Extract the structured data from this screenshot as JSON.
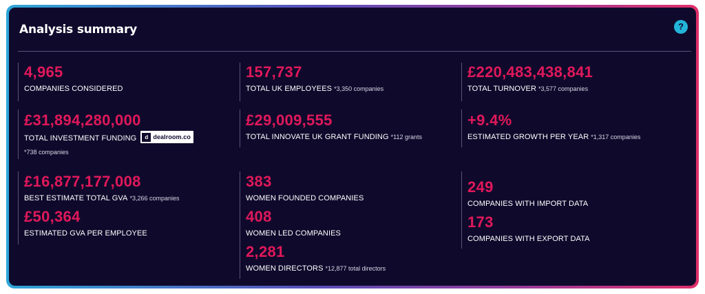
{
  "panel": {
    "title": "Analysis summary",
    "help_label": "?"
  },
  "stats": {
    "companies_considered": {
      "value": "4,965",
      "label": "COMPANIES CONSIDERED"
    },
    "uk_employees": {
      "value": "157,737",
      "label": "TOTAL UK EMPLOYEES",
      "note": "*3,350 companies"
    },
    "turnover": {
      "value": "£220,483,438,841",
      "label": "TOTAL TURNOVER",
      "note": "*3,577 companies"
    },
    "investment_funding": {
      "value": "£31,894,280,000",
      "label": "TOTAL INVESTMENT FUNDING",
      "note": "*738 companies",
      "logo_text": "dealroom.co",
      "logo_mark": "d"
    },
    "innovate_funding": {
      "value": "£29,009,555",
      "label": "TOTAL INNOVATE UK GRANT FUNDING",
      "note": "*112 grants"
    },
    "growth": {
      "value": "+9.4%",
      "label": "ESTIMATED GROWTH PER YEAR",
      "note": "*1,317 companies"
    },
    "gva": {
      "value": "£16,877,177,008",
      "label": "BEST ESTIMATE TOTAL GVA",
      "note": "*3,266 companies"
    },
    "gva_per_employee": {
      "value": "£50,364",
      "label": "ESTIMATED GVA PER EMPLOYEE"
    },
    "women_founded": {
      "value": "383",
      "label": "WOMEN FOUNDED COMPANIES"
    },
    "women_led": {
      "value": "408",
      "label": "WOMEN LED COMPANIES"
    },
    "women_directors": {
      "value": "2,281",
      "label": "WOMEN DIRECTORS",
      "note": "*12,877 total directors"
    },
    "import_data": {
      "value": "249",
      "label": "COMPANIES WITH IMPORT DATA"
    },
    "export_data": {
      "value": "173",
      "label": "COMPANIES WITH EXPORT DATA"
    }
  },
  "colors": {
    "background": "#0f0a2c",
    "value": "#e0185a",
    "label": "#ffffff",
    "help": "#23b4d9",
    "border_start": "#2fa6d8",
    "border_end": "#e0306a"
  }
}
